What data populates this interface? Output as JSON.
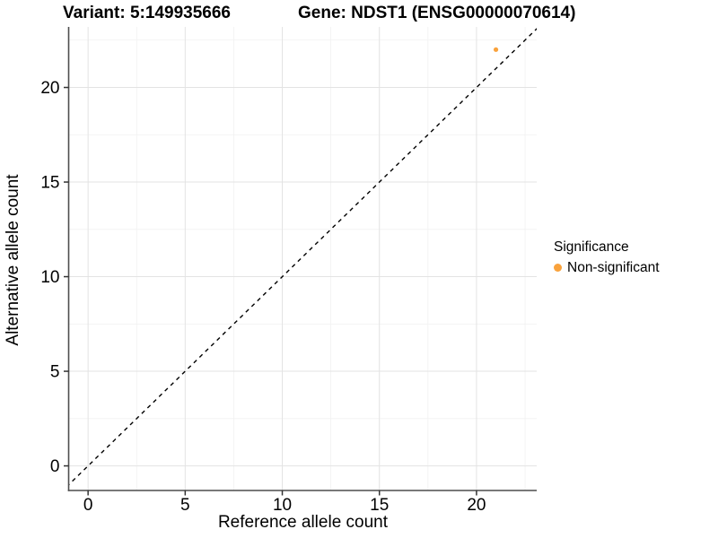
{
  "header": {
    "title_left": "Variant: 5:149935666",
    "title_right": "Gene: NDST1 (ENSG00000070614)"
  },
  "chart_data": {
    "type": "scatter",
    "points": [
      {
        "x": 21,
        "y": 22,
        "series": "Non-significant"
      }
    ],
    "series": [
      {
        "name": "Non-significant",
        "color": "#F9A23C"
      }
    ],
    "reference_line": {
      "kind": "identity",
      "slope": 1,
      "intercept": 0,
      "style": "dashed",
      "color": "#000000"
    },
    "xlabel": "Reference allele count",
    "ylabel": "Alternative allele count",
    "xlim": [
      -1.0,
      23.1
    ],
    "ylim": [
      -1.3,
      23.2
    ],
    "x_major_ticks": [
      0,
      5,
      10,
      15,
      20
    ],
    "y_major_ticks": [
      0,
      5,
      10,
      15,
      20
    ],
    "x_minor_ticks": [
      2.5,
      7.5,
      12.5,
      17.5,
      22.5
    ],
    "y_minor_ticks": [
      2.5,
      7.5,
      12.5,
      17.5,
      22.5
    ],
    "grid": "major+minor",
    "legend_position": "right"
  },
  "legend": {
    "title": "Significance",
    "entries": [
      {
        "label": "Non-significant",
        "color": "#F9A23C"
      }
    ]
  },
  "colors": {
    "background": "#FFFFFF",
    "grid_major": "#E3E3E3",
    "grid_minor": "#F1F1F1",
    "axis_line": "#4D4D4D",
    "tick_mark": "#333333",
    "tick_label": "#000000",
    "point": "#F9A23C"
  }
}
